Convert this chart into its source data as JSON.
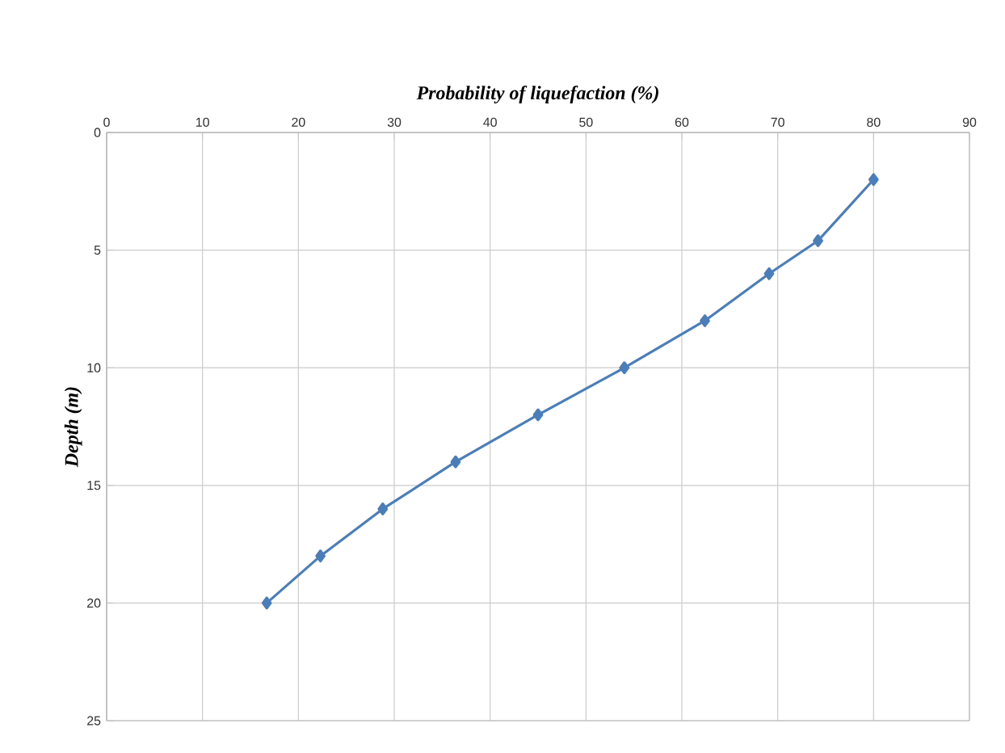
{
  "chart_data": {
    "type": "line",
    "xlabel": "Probability of liquefaction (%)",
    "ylabel": "Depth (m)",
    "series": [
      {
        "color": "#4a7ebb",
        "x": [
          80,
          74.2,
          69.1,
          62.4,
          54,
          45,
          36.4,
          28.8,
          22.3,
          16.7
        ],
        "values": [
          2,
          4.6,
          6,
          8,
          10,
          12,
          14,
          16,
          18,
          20
        ]
      }
    ],
    "xlim": [
      0,
      90
    ],
    "xticks": [
      0,
      10,
      20,
      30,
      40,
      50,
      60,
      70,
      80,
      90
    ],
    "ylim": [
      25,
      0
    ],
    "yticks": [
      0,
      5,
      10,
      15,
      20,
      25
    ],
    "grid": true,
    "marker": "diamond",
    "line_style": "solid"
  }
}
